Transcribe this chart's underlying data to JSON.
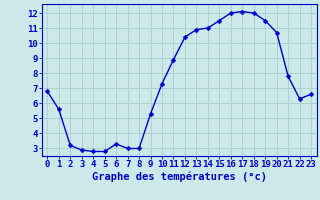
{
  "hours": [
    0,
    1,
    2,
    3,
    4,
    5,
    6,
    7,
    8,
    9,
    10,
    11,
    12,
    13,
    14,
    15,
    16,
    17,
    18,
    19,
    20,
    21,
    22,
    23
  ],
  "temperatures": [
    6.8,
    5.6,
    3.2,
    2.9,
    2.8,
    2.8,
    3.3,
    3.0,
    3.0,
    5.3,
    7.3,
    8.9,
    10.4,
    10.9,
    11.0,
    11.5,
    12.0,
    12.1,
    12.0,
    11.5,
    10.7,
    7.8,
    6.3,
    6.6
  ],
  "xlabel": "Graphe des températures (°c)",
  "xlim": [
    -0.5,
    23.5
  ],
  "ylim": [
    2.5,
    12.6
  ],
  "yticks": [
    3,
    4,
    5,
    6,
    7,
    8,
    9,
    10,
    11,
    12
  ],
  "ytick_labels": [
    "3",
    "4",
    "5",
    "6",
    "7",
    "8",
    "9",
    "10",
    "11",
    "12"
  ],
  "xtick_labels": [
    "0",
    "1",
    "2",
    "3",
    "4",
    "5",
    "6",
    "7",
    "8",
    "9",
    "10",
    "11",
    "12",
    "13",
    "14",
    "15",
    "16",
    "17",
    "18",
    "19",
    "20",
    "21",
    "22",
    "23"
  ],
  "bg_color": "#cce8e8",
  "grid_color": "#aacccc",
  "line_color": "#0000cc",
  "marker_color": "#0000cc",
  "axis_color": "#0000cc",
  "tick_label_color": "#0000cc",
  "xlabel_fontsize": 7.5,
  "tick_fontsize": 6.5,
  "line_width": 1.0,
  "marker_size": 2.5
}
